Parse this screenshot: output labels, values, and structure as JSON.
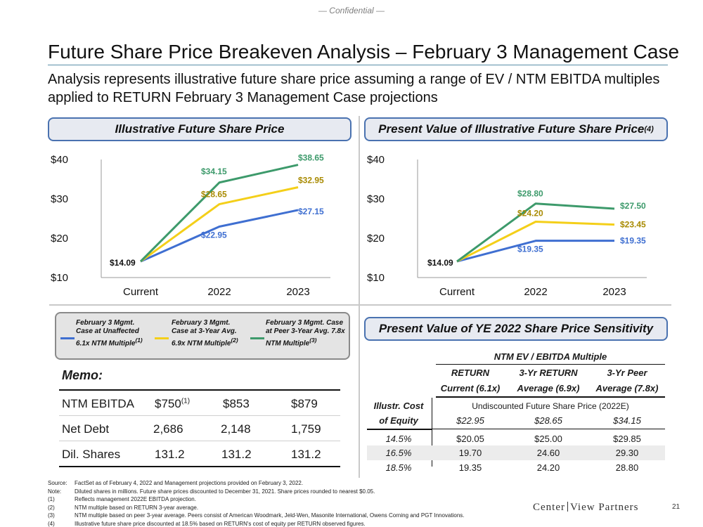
{
  "header": {
    "confidential": "— Confidential —",
    "title": "Future Share Price Breakeven Analysis – February 3 Management Case",
    "subtitle": "Analysis represents illustrative future share price assuming a range of EV / NTM EBITDA multiples applied to RETURN February 3 Management Case projections"
  },
  "left_panel": {
    "title": "Illustrative Future Share Price"
  },
  "right_panel": {
    "title": "Present Value of Illustrative Future Share Price",
    "title_note": "(4)"
  },
  "sensitivity_panel": {
    "title": "Present Value of YE 2022 Share Price Sensitivity"
  },
  "colors": {
    "blue": "#3f6fd1",
    "yellow": "#f4cf19",
    "green": "#3d9a6b",
    "pill_border": "#4a72b0"
  },
  "chart_data": [
    {
      "type": "line",
      "title": "Illustrative Future Share Price",
      "categories": [
        "Current",
        "2022",
        "2023"
      ],
      "ylim": [
        10,
        40
      ],
      "yticks": [
        "$10",
        "$20",
        "$30",
        "$40"
      ],
      "series": [
        {
          "name": "February 3 Mgmt. Case at Unaffected 6.1x NTM Multiple",
          "color": "#3f6fd1",
          "values": [
            14.09,
            22.95,
            27.15
          ],
          "labels": [
            "$14.09",
            "$22.95",
            "$27.15"
          ]
        },
        {
          "name": "February 3 Mgmt. Case at 3-Year Avg. 6.9x NTM Multiple",
          "color": "#f4cf19",
          "values": [
            14.09,
            28.65,
            32.95
          ],
          "labels": [
            "",
            "$28.65",
            "$32.95"
          ]
        },
        {
          "name": "February 3 Mgmt. Case at Peer 3-Year Avg. 7.8x NTM Multiple",
          "color": "#3d9a6b",
          "values": [
            14.09,
            34.15,
            38.65
          ],
          "labels": [
            "",
            "$34.15",
            "$38.65"
          ]
        }
      ]
    },
    {
      "type": "line",
      "title": "Present Value of Illustrative Future Share Price",
      "categories": [
        "Current",
        "2022",
        "2023"
      ],
      "ylim": [
        10,
        40
      ],
      "yticks": [
        "$10",
        "$20",
        "$30",
        "$40"
      ],
      "series": [
        {
          "name": "February 3 Mgmt. Case at Unaffected 6.1x NTM Multiple",
          "color": "#3f6fd1",
          "values": [
            14.09,
            19.35,
            19.35
          ],
          "labels": [
            "$14.09",
            "$19.35",
            "$19.35"
          ]
        },
        {
          "name": "February 3 Mgmt. Case at 3-Year Avg. 6.9x NTM Multiple",
          "color": "#f4cf19",
          "values": [
            14.09,
            24.2,
            23.45
          ],
          "labels": [
            "",
            "$24.20",
            "$23.45"
          ]
        },
        {
          "name": "February 3 Mgmt. Case at Peer 3-Year Avg. 7.8x NTM Multiple",
          "color": "#3d9a6b",
          "values": [
            14.09,
            28.8,
            27.5
          ],
          "labels": [
            "",
            "$28.80",
            "$27.50"
          ]
        }
      ]
    }
  ],
  "legend": [
    {
      "text": "February 3 Mgmt. Case at Unaffected 6.1x NTM Multiple",
      "note": "(1)"
    },
    {
      "text": "February 3 Mgmt. Case at 3-Year Avg. 6.9x NTM Multiple",
      "note": "(2)"
    },
    {
      "text": "February 3 Mgmt. Case at Peer 3-Year Avg. 7.8x NTM Multiple",
      "note": "(3)"
    }
  ],
  "memo": {
    "title": "Memo:",
    "rows": [
      {
        "label": "NTM EBITDA",
        "v1": "$750",
        "v1_note": "(1)",
        "v2": "$853",
        "v3": "$879"
      },
      {
        "label": "Net Debt",
        "v1": "2,686",
        "v1_note": "",
        "v2": "2,148",
        "v3": "1,759"
      },
      {
        "label": "Dil. Shares",
        "v1": "131.2",
        "v1_note": "",
        "v2": "131.2",
        "v3": "131.2"
      }
    ]
  },
  "sensitivity": {
    "group_header": "NTM EV / EBITDA Multiple",
    "col_headers": [
      {
        "l1": "RETURN",
        "l2": "Current (6.1x)"
      },
      {
        "l1": "3-Yr RETURN",
        "l2": "Average (6.9x)"
      },
      {
        "l1": "3-Yr Peer",
        "l2": "Average (7.8x)"
      }
    ],
    "row_header_l1": "Illustr. Cost",
    "row_header_l2": "of Equity",
    "undiscounted_label": "Undiscounted Future Share Price (2022E)",
    "undiscounted": [
      "$22.95",
      "$28.65",
      "$34.15"
    ],
    "rows": [
      {
        "coe": "14.5%",
        "values": [
          "$20.05",
          "$25.00",
          "$29.85"
        ]
      },
      {
        "coe": "16.5%",
        "values": [
          "19.70",
          "24.60",
          "29.30"
        ]
      },
      {
        "coe": "18.5%",
        "values": [
          "19.35",
          "24.20",
          "28.80"
        ]
      }
    ]
  },
  "footnotes": [
    {
      "key": "Source:",
      "text": "FactSet as of February 4, 2022 and Management projections provided on February 3, 2022."
    },
    {
      "key": "Note:",
      "text": "Diluted shares in millions. Future share prices discounted to December 31, 2021. Share prices rounded to nearest $0.05."
    },
    {
      "key": "(1)",
      "text": "Reflects management 2022E EBITDA projection."
    },
    {
      "key": "(2)",
      "text": "NTM multiple based on RETURN 3-year average."
    },
    {
      "key": "(3)",
      "text": "NTM multiple based on peer 3-year average. Peers consist of American Woodmark, Jeld-Wen, Masonite International, Owens Corning and PGT Innovations."
    },
    {
      "key": "(4)",
      "text": "Illustrative future share price discounted at 18.5% based on RETURN's cost of equity per RETURN observed figures."
    }
  ],
  "logo": {
    "left": "Center",
    "right": "View Partners"
  },
  "page_number": "21"
}
